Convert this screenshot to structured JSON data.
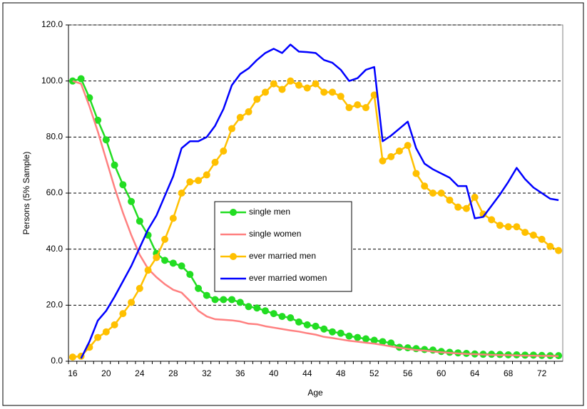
{
  "chart_data": {
    "type": "line",
    "x_label": "Age",
    "y_label": "Persons (5% Sample)",
    "categories": [
      16,
      null,
      null,
      null,
      20,
      null,
      null,
      null,
      24,
      null,
      null,
      null,
      28,
      null,
      null,
      null,
      32,
      null,
      null,
      null,
      36,
      null,
      null,
      null,
      40,
      null,
      null,
      null,
      44,
      null,
      null,
      null,
      48,
      null,
      null,
      null,
      52,
      null,
      null,
      null,
      56,
      null,
      null,
      null,
      60,
      null,
      null,
      null,
      64,
      null,
      null,
      null,
      68,
      null,
      null,
      null,
      72,
      null,
      null
    ],
    "ylim": [
      0,
      120
    ],
    "yticks": [
      {
        "value": 0,
        "label": "0.0"
      },
      {
        "value": 20,
        "label": "20.0"
      },
      {
        "value": 40,
        "label": "40.0"
      },
      {
        "value": 60,
        "label": "60.0"
      },
      {
        "value": 80,
        "label": "80.0"
      },
      {
        "value": 100,
        "label": "100.0"
      },
      {
        "value": 120,
        "label": "120.0"
      }
    ],
    "grid": true,
    "legend": "center",
    "series": [
      {
        "name": "single men",
        "color": "#22dd22",
        "marker": true,
        "values": [
          100,
          100.8,
          94,
          86,
          79,
          70,
          63,
          57,
          50,
          45,
          38.5,
          36,
          35,
          34,
          31,
          26,
          23.5,
          22,
          22,
          22,
          21,
          19.5,
          19,
          18,
          17,
          16,
          15.5,
          14,
          13,
          12.5,
          11.5,
          10.5,
          10,
          9,
          8.5,
          8,
          7.5,
          7,
          6.5,
          5,
          4.8,
          4.5,
          4.2,
          4,
          3.5,
          3.2,
          3,
          2.8,
          2.6,
          2.5,
          2.5,
          2.4,
          2.3,
          2.3,
          2.2,
          2.2,
          2.1,
          2,
          2
        ]
      },
      {
        "name": "single women",
        "color": "#ff8080",
        "marker": false,
        "values": [
          100,
          99,
          91,
          82,
          72,
          62,
          53,
          45,
          38,
          33,
          30,
          27.5,
          25.5,
          24.5,
          21.5,
          18,
          16,
          15,
          14.8,
          14.6,
          14.2,
          13.4,
          13.2,
          12.5,
          12,
          11.5,
          11,
          10.6,
          10,
          9.5,
          8.7,
          8.3,
          7.8,
          7.3,
          7,
          6.6,
          6.3,
          5.8,
          5.3,
          4.8,
          4.4,
          4,
          3.8,
          3.5,
          3.2,
          3,
          2.8,
          2.6,
          2.5,
          2.4,
          2.3,
          2.2,
          2.2,
          2.1,
          2,
          2,
          1.9,
          1.9,
          1.8
        ]
      },
      {
        "name": "ever married men",
        "color": "#ffc000",
        "marker": true,
        "values": [
          1.5,
          1.8,
          5,
          8.5,
          10.5,
          13,
          17,
          21,
          26,
          32.5,
          37,
          43.5,
          51,
          60,
          64,
          64.5,
          66.5,
          71,
          75,
          83,
          87,
          89,
          93.5,
          96,
          99,
          97,
          100,
          98.5,
          97.5,
          99,
          96,
          96,
          94.5,
          90.5,
          91.5,
          90.5,
          95,
          71.5,
          73,
          75,
          77,
          67,
          62.5,
          60,
          60,
          57.5,
          55,
          54.5,
          58.5,
          52.5,
          50.5,
          48.5,
          48,
          48,
          46,
          45,
          43.5,
          41,
          39.5
        ]
      },
      {
        "name": "ever married women",
        "color": "#0000ff",
        "marker": false,
        "values": [
          null,
          1,
          7,
          14.5,
          18,
          23,
          28.5,
          34,
          40.5,
          47,
          52,
          59,
          66,
          76,
          78.5,
          78.5,
          80,
          84,
          90,
          98.5,
          102.5,
          104.5,
          107.5,
          110,
          111.5,
          110,
          113,
          110.5,
          110.3,
          110,
          107.5,
          106.5,
          104,
          100,
          101,
          104,
          105,
          78.5,
          80.5,
          83,
          85.5,
          76,
          70.5,
          68.5,
          67,
          65.5,
          62.5,
          62.5,
          51,
          51.5,
          55.5,
          59.5,
          64,
          69,
          65,
          62,
          60,
          58,
          57.5
        ]
      }
    ]
  }
}
